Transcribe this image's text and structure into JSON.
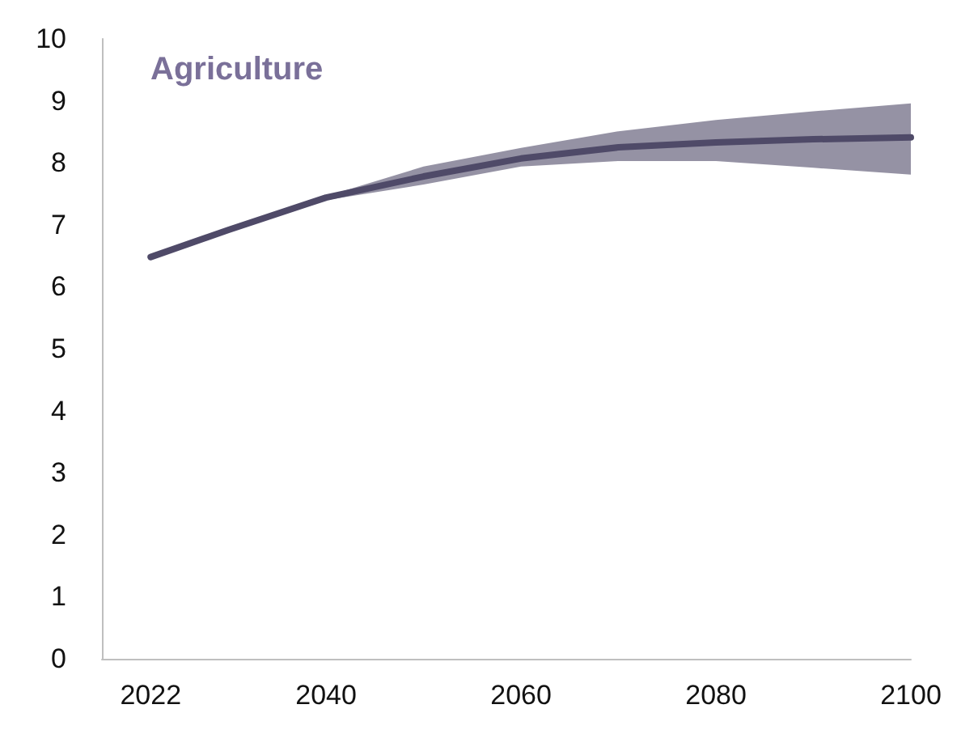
{
  "chart_data": {
    "type": "line",
    "title": "Agriculture",
    "x": [
      2022,
      2030,
      2040,
      2050,
      2060,
      2070,
      2080,
      2090,
      2100
    ],
    "series": [
      {
        "color": "#4f4a68",
        "values": [
          6.48,
          6.92,
          7.44,
          7.78,
          8.07,
          8.25,
          8.33,
          8.38,
          8.41
        ],
        "lower": [
          6.48,
          6.92,
          7.4,
          7.65,
          7.94,
          8.03,
          8.03,
          7.92,
          7.81
        ],
        "upper": [
          6.48,
          6.92,
          7.46,
          7.94,
          8.24,
          8.51,
          8.69,
          8.83,
          8.96
        ]
      }
    ],
    "xlim": [
      2017,
      2100
    ],
    "xticks": [
      2022,
      2040,
      2060,
      2080,
      2100
    ],
    "ylim": [
      0,
      10
    ],
    "yticks": [
      0,
      1,
      2,
      3,
      4,
      5,
      6,
      7,
      8,
      9,
      10
    ],
    "grid": false,
    "marker": "none",
    "line_style": "solid"
  }
}
